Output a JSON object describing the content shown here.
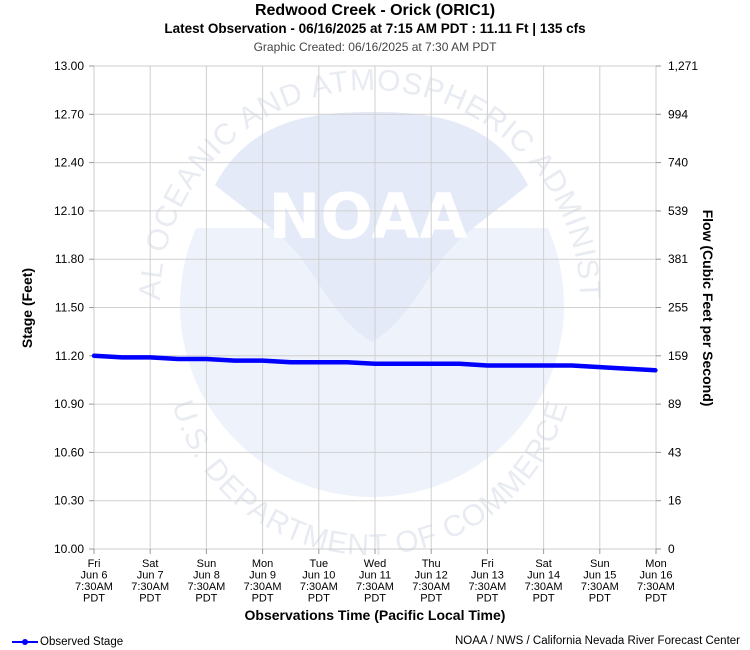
{
  "title": "Redwood Creek - Orick (ORIC1)",
  "subtitle": "Latest Observation - 06/16/2025 at 7:15 AM PDT : 11.11 Ft | 135 cfs",
  "created": "Graphic Created: 06/16/2025 at 7:30 AM PDT",
  "footer_credit": "NOAA / NWS / California Nevada River Forecast Center",
  "watermark": {
    "logo_text": "NOAA",
    "ring_top": "NATIONAL OCEANIC AND ATMOSPHERIC ADMINISTRATION",
    "ring_bottom": "U.S. DEPARTMENT OF COMMERCE"
  },
  "chart_data": {
    "type": "line",
    "xlabel": "Observations Time (Pacific Local Time)",
    "ylabel": "Stage (Feet)",
    "y2label": "Flow (Cubic Feet per Second)",
    "ylim": [
      10.0,
      13.0
    ],
    "yticks": [
      "13.00",
      "12.70",
      "12.40",
      "12.10",
      "11.80",
      "11.50",
      "11.20",
      "10.90",
      "10.60",
      "10.30",
      "10.00"
    ],
    "y2ticks": [
      "1,271",
      "994",
      "740",
      "539",
      "381",
      "255",
      "159",
      "89",
      "43",
      "16",
      "0"
    ],
    "xticks": [
      [
        "Fri",
        "Jun 6",
        "7:30AM",
        "PDT"
      ],
      [
        "Sat",
        "Jun 7",
        "7:30AM",
        "PDT"
      ],
      [
        "Sun",
        "Jun 8",
        "7:30AM",
        "PDT"
      ],
      [
        "Mon",
        "Jun 9",
        "7:30AM",
        "PDT"
      ],
      [
        "Tue",
        "Jun 10",
        "7:30AM",
        "PDT"
      ],
      [
        "Wed",
        "Jun 11",
        "7:30AM",
        "PDT"
      ],
      [
        "Thu",
        "Jun 12",
        "7:30AM",
        "PDT"
      ],
      [
        "Fri",
        "Jun 13",
        "7:30AM",
        "PDT"
      ],
      [
        "Sat",
        "Jun 14",
        "7:30AM",
        "PDT"
      ],
      [
        "Sun",
        "Jun 15",
        "7:30AM",
        "PDT"
      ],
      [
        "Mon",
        "Jun 16",
        "7:30AM",
        "PDT"
      ]
    ],
    "grid": true,
    "legend_position": "bottom-left",
    "series": [
      {
        "name": "Observed Stage",
        "color": "#0000ff",
        "x": [
          "06/06 07:30",
          "06/06 19:30",
          "06/07 07:30",
          "06/07 19:30",
          "06/08 07:30",
          "06/08 19:30",
          "06/09 07:30",
          "06/09 19:30",
          "06/10 07:30",
          "06/10 19:30",
          "06/11 07:30",
          "06/11 19:30",
          "06/12 07:30",
          "06/12 19:30",
          "06/13 07:30",
          "06/13 19:30",
          "06/14 07:30",
          "06/14 19:30",
          "06/15 07:30",
          "06/15 19:30",
          "06/16 07:15"
        ],
        "y": [
          11.2,
          11.19,
          11.19,
          11.18,
          11.18,
          11.17,
          11.17,
          11.16,
          11.16,
          11.16,
          11.15,
          11.15,
          11.15,
          11.15,
          11.14,
          11.14,
          11.14,
          11.14,
          11.13,
          11.12,
          11.11
        ]
      }
    ]
  }
}
